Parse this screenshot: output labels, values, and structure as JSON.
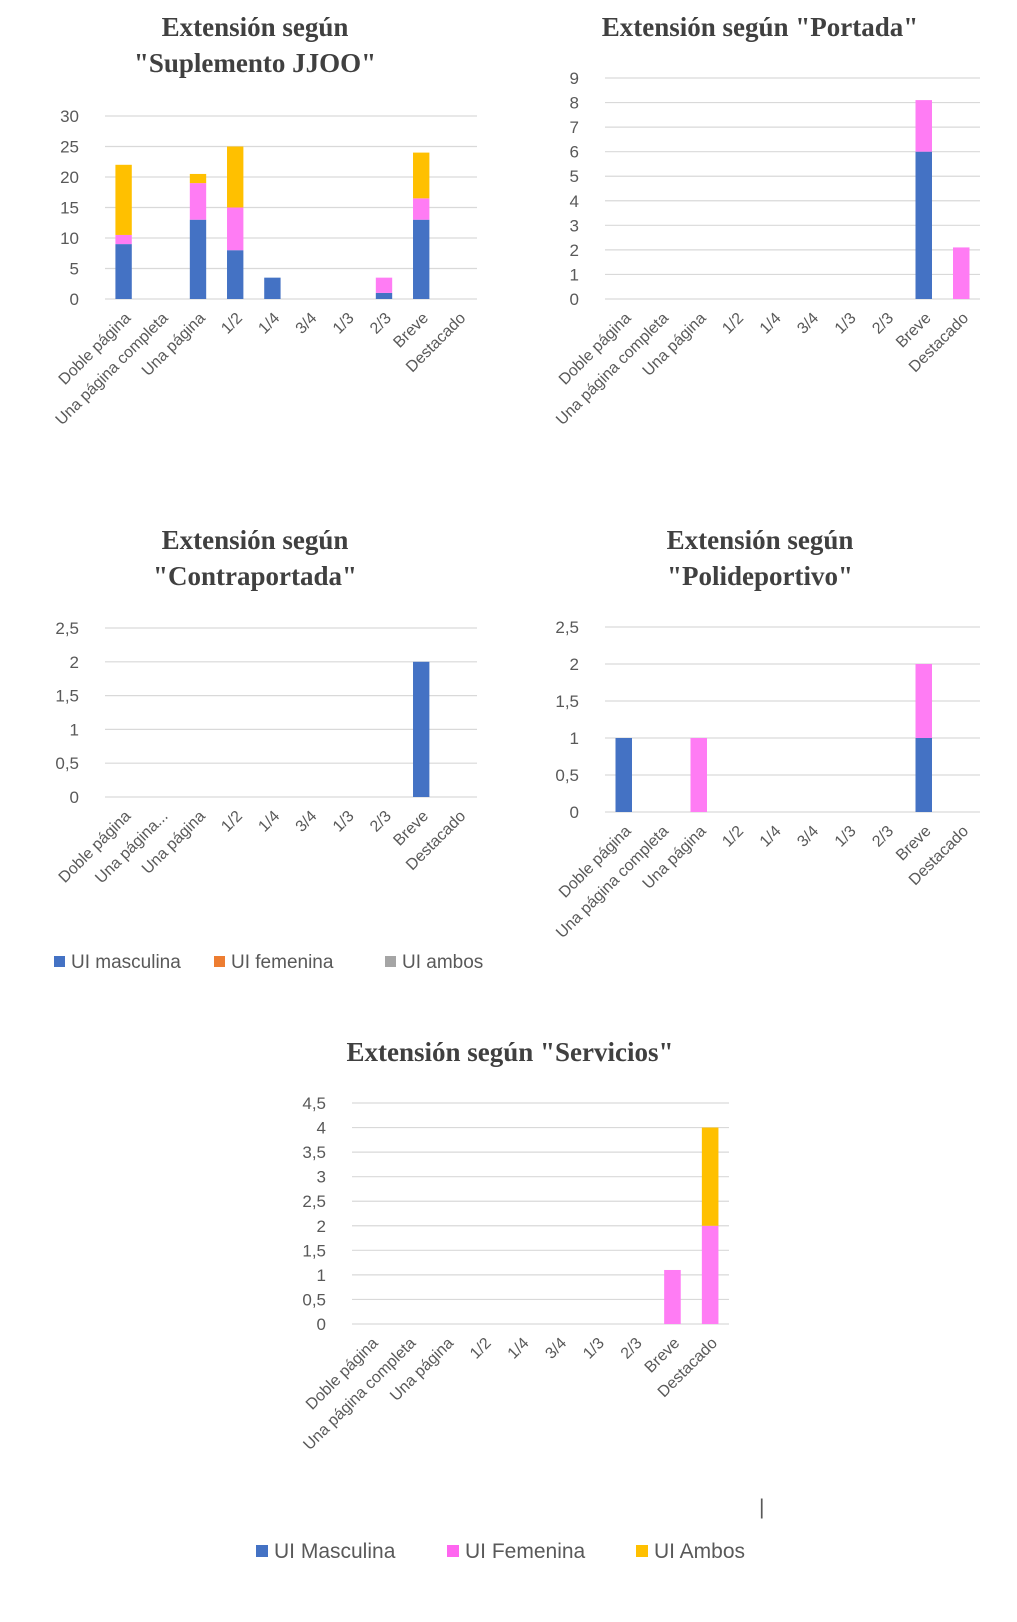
{
  "categories": [
    "Doble página",
    "Una página completa",
    "Una página",
    "1/2",
    "1/4",
    "3/4",
    "1/3",
    "2/3",
    "Breve",
    "Destacado"
  ],
  "colors": {
    "masculina": "#4472c4",
    "femenina": "#ff7cf4",
    "ambos": "#ffc000",
    "legend_orange": "#ed7d31",
    "legend_gray": "#a5a5a5"
  },
  "legend_small": [
    {
      "label": "UI masculina",
      "color": "#4472c4"
    },
    {
      "label": "UI femenina",
      "color": "#ed7d31"
    },
    {
      "label": "UI ambos",
      "color": "#a5a5a5"
    }
  ],
  "legend_big": [
    {
      "label": "UI Masculina",
      "color": "#4472c4"
    },
    {
      "label": "UI Femenina",
      "color": "#ff66f0"
    },
    {
      "label": "UI Ambos",
      "color": "#ffc000"
    }
  ],
  "cursor_glyph": "|",
  "chart_data": [
    {
      "type": "bar",
      "stacked": true,
      "title": [
        "Extensión según",
        "\"Suplemento JJOO\""
      ],
      "categories": [
        "Doble página",
        "Una página completa",
        "Una página",
        "1/2",
        "1/4",
        "3/4",
        "1/3",
        "2/3",
        "Breve",
        "Destacado"
      ],
      "yticks": [
        "0",
        "5",
        "10",
        "15",
        "20",
        "25",
        "30"
      ],
      "ylim": [
        0,
        30
      ],
      "grid": true,
      "series": [
        {
          "key": "masculina",
          "values": [
            9,
            0,
            13,
            8,
            3.5,
            0,
            0,
            1,
            13,
            0
          ]
        },
        {
          "key": "femenina",
          "values": [
            1.5,
            0,
            6,
            7,
            0,
            0,
            0,
            2.5,
            3.5,
            0
          ]
        },
        {
          "key": "ambos",
          "values": [
            11.5,
            0,
            1.5,
            10,
            0,
            0,
            0,
            0,
            7.5,
            0
          ]
        }
      ]
    },
    {
      "type": "bar",
      "stacked": true,
      "title": [
        "Extensión según \"Portada\""
      ],
      "categories": [
        "Doble página",
        "Una página completa",
        "Una página",
        "1/2",
        "1/4",
        "3/4",
        "1/3",
        "2/3",
        "Breve",
        "Destacado"
      ],
      "yticks": [
        "0",
        "1",
        "2",
        "3",
        "4",
        "5",
        "6",
        "7",
        "8",
        "9"
      ],
      "ylim": [
        0,
        9
      ],
      "grid": true,
      "series": [
        {
          "key": "masculina",
          "values": [
            0,
            0,
            0,
            0,
            0,
            0,
            0,
            0,
            6,
            0
          ]
        },
        {
          "key": "femenina",
          "values": [
            0,
            0,
            0,
            0,
            0,
            0,
            0,
            0,
            2.1,
            2.1
          ]
        },
        {
          "key": "ambos",
          "values": [
            0,
            0,
            0,
            0,
            0,
            0,
            0,
            0,
            0,
            0
          ]
        }
      ]
    },
    {
      "type": "bar",
      "stacked": true,
      "title": [
        "Extensión según",
        "\"Contraportada\""
      ],
      "categories": [
        "Doble página",
        "Una página...",
        "Una página",
        "1/2",
        "1/4",
        "3/4",
        "1/3",
        "2/3",
        "Breve",
        "Destacado"
      ],
      "yticks": [
        "0",
        "0,5",
        "1",
        "1,5",
        "2",
        "2,5"
      ],
      "ylim": [
        0,
        2.5
      ],
      "grid": true,
      "series": [
        {
          "key": "masculina",
          "values": [
            0,
            0,
            0,
            0,
            0,
            0,
            0,
            0,
            2,
            0
          ]
        },
        {
          "key": "femenina",
          "values": [
            0,
            0,
            0,
            0,
            0,
            0,
            0,
            0,
            0,
            0
          ]
        },
        {
          "key": "ambos",
          "values": [
            0,
            0,
            0,
            0,
            0,
            0,
            0,
            0,
            0,
            0
          ]
        }
      ]
    },
    {
      "type": "bar",
      "stacked": true,
      "title": [
        "Extensión según",
        "\"Polideportivo\""
      ],
      "categories": [
        "Doble página",
        "Una página completa",
        "Una página",
        "1/2",
        "1/4",
        "3/4",
        "1/3",
        "2/3",
        "Breve",
        "Destacado"
      ],
      "yticks": [
        "0",
        "0,5",
        "1",
        "1,5",
        "2",
        "2,5"
      ],
      "ylim": [
        0,
        2.5
      ],
      "grid": true,
      "series": [
        {
          "key": "masculina",
          "values": [
            1,
            0,
            0,
            0,
            0,
            0,
            0,
            0,
            1,
            0
          ]
        },
        {
          "key": "femenina",
          "values": [
            0,
            0,
            1,
            0,
            0,
            0,
            0,
            0,
            1,
            0
          ]
        },
        {
          "key": "ambos",
          "values": [
            0,
            0,
            0,
            0,
            0,
            0,
            0,
            0,
            0,
            0
          ]
        }
      ]
    },
    {
      "type": "bar",
      "stacked": true,
      "title": [
        "Extensión según \"Servicios\""
      ],
      "categories": [
        "Doble página",
        "Una página completa",
        "Una página",
        "1/2",
        "1/4",
        "3/4",
        "1/3",
        "2/3",
        "Breve",
        "Destacado"
      ],
      "yticks": [
        "0",
        "0,5",
        "1",
        "1,5",
        "2",
        "2,5",
        "3",
        "3,5",
        "4",
        "4,5"
      ],
      "ylim": [
        0,
        4.5
      ],
      "grid": true,
      "series": [
        {
          "key": "masculina",
          "values": [
            0,
            0,
            0,
            0,
            0,
            0,
            0,
            0,
            0,
            0
          ]
        },
        {
          "key": "femenina",
          "values": [
            0,
            0,
            0,
            0,
            0,
            0,
            0,
            0,
            1.1,
            2
          ]
        },
        {
          "key": "ambos",
          "values": [
            0,
            0,
            0,
            0,
            0,
            0,
            0,
            0,
            0,
            2
          ]
        }
      ]
    }
  ]
}
